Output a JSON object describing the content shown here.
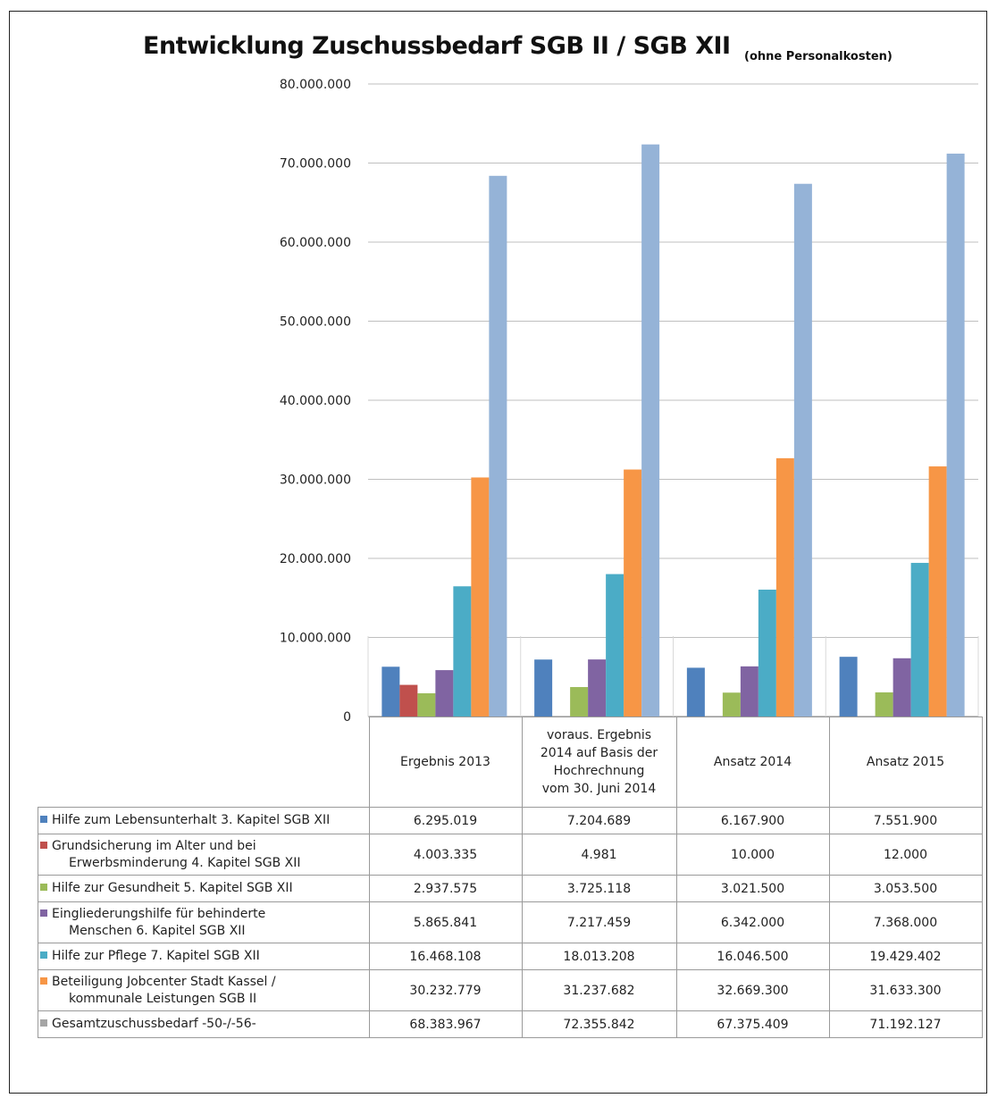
{
  "chart_data": {
    "type": "bar",
    "title": "Entwicklung Zuschussbedarf SGB II / SGB XII",
    "subtitle": "(ohne Personalkosten)",
    "ylim": [
      0,
      80000000
    ],
    "yticks": [
      "0",
      "10.000.000",
      "20.000.000",
      "30.000.000",
      "40.000.000",
      "50.000.000",
      "60.000.000",
      "70.000.000",
      "80.000.000"
    ],
    "grid": true,
    "legend": "table-left",
    "categories": [
      [
        "Ergebnis 2013"
      ],
      [
        "voraus. Ergebnis",
        "2014 auf Basis der",
        "Hochrechnung",
        "vom 30. Juni 2014"
      ],
      [
        "Ansatz 2014"
      ],
      [
        "Ansatz 2015"
      ]
    ],
    "series": [
      {
        "name": "Hilfe zum Lebensunterhalt 3. Kapitel SGB XII",
        "color": "#4f81bd",
        "values": [
          6295019,
          7204689,
          6167900,
          7551900
        ],
        "labels": [
          "6.295.019",
          "7.204.689",
          "6.167.900",
          "7.551.900"
        ]
      },
      {
        "name": "Grundsicherung im Alter und bei Erwerbsminderung 4. Kapitel SGB XII",
        "color": "#c0504d",
        "values": [
          4003335,
          4981,
          10000,
          12000
        ],
        "labels": [
          "4.003.335",
          "4.981",
          "10.000",
          "12.000"
        ]
      },
      {
        "name": "Hilfe zur Gesundheit 5. Kapitel SGB XII",
        "color": "#9bbb59",
        "values": [
          2937575,
          3725118,
          3021500,
          3053500
        ],
        "labels": [
          "2.937.575",
          "3.725.118",
          "3.021.500",
          "3.053.500"
        ]
      },
      {
        "name": "Eingliederungshilfe für behinderte Menschen 6. Kapitel SGB XII",
        "color": "#8064a2",
        "values": [
          5865841,
          7217459,
          6342000,
          7368000
        ],
        "labels": [
          "5.865.841",
          "7.217.459",
          "6.342.000",
          "7.368.000"
        ]
      },
      {
        "name": "Hilfe zur Pflege 7. Kapitel SGB XII",
        "color": "#4bacc6",
        "values": [
          16468108,
          18013208,
          16046500,
          19429402
        ],
        "labels": [
          "16.468.108",
          "18.013.208",
          "16.046.500",
          "19.429.402"
        ]
      },
      {
        "name": "Beteiligung Jobcenter Stadt Kassel / kommunale Leistungen SGB II",
        "color": "#f79646",
        "values": [
          30232779,
          31237682,
          32669300,
          31633300
        ],
        "labels": [
          "30.232.779",
          "31.237.682",
          "32.669.300",
          "31.633.300"
        ]
      },
      {
        "name": "Gesamtzuschussbedarf -50-/-56-",
        "color": "#95b3d7",
        "swatch_color": "#a5a5a5",
        "values": [
          68383967,
          72355842,
          67375409,
          71192127
        ],
        "labels": [
          "68.383.967",
          "72.355.842",
          "67.375.409",
          "71.192.127"
        ]
      }
    ],
    "series_label_lines": [
      [
        "Hilfe zum Lebensunterhalt 3. Kapitel SGB XII"
      ],
      [
        "Grundsicherung im Alter und bei",
        "Erwerbsminderung 4. Kapitel SGB XII"
      ],
      [
        "Hilfe zur Gesundheit 5. Kapitel SGB XII"
      ],
      [
        "Eingliederungshilfe für behinderte",
        "Menschen 6. Kapitel SGB XII"
      ],
      [
        "Hilfe zur Pflege 7. Kapitel SGB XII"
      ],
      [
        "Beteiligung Jobcenter Stadt Kassel /",
        "kommunale Leistungen SGB II"
      ],
      [
        "Gesamtzuschussbedarf -50-/-56-"
      ]
    ]
  }
}
